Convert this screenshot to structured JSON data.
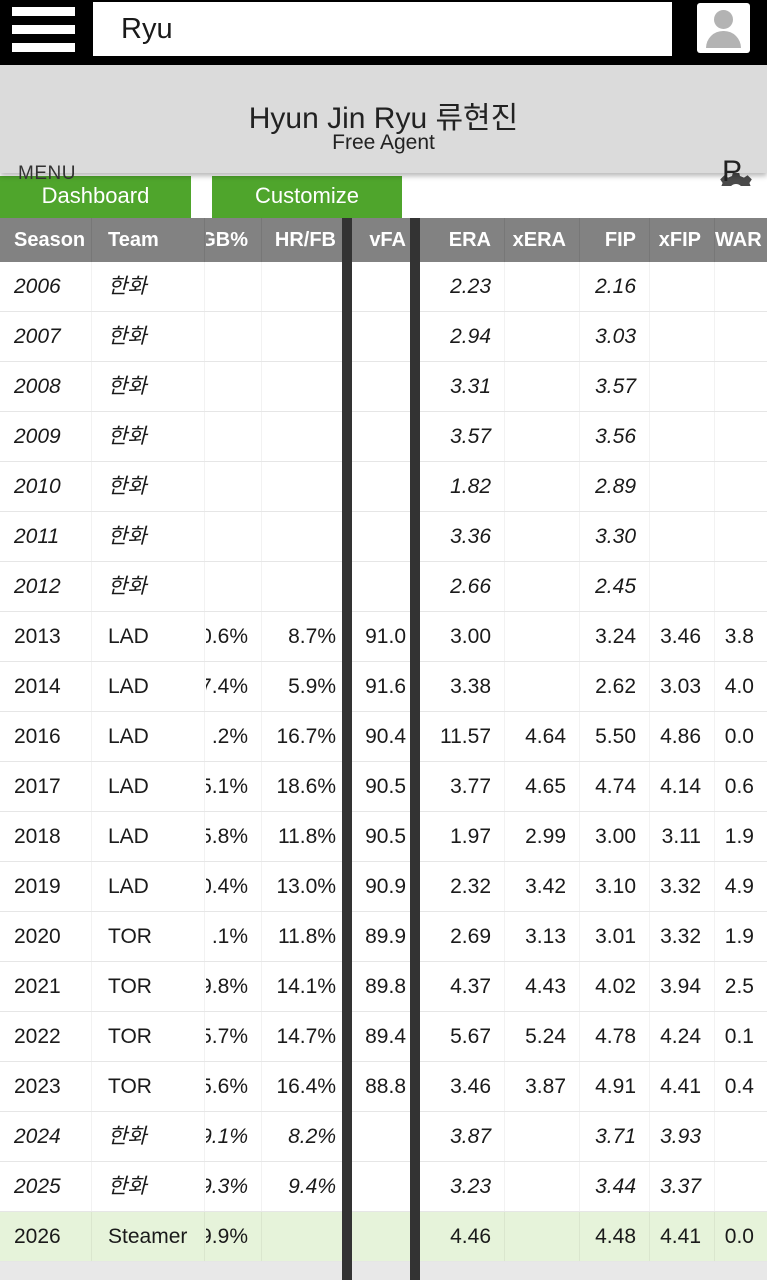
{
  "topbar": {
    "search_value": "Ryu",
    "search_placeholder": ""
  },
  "icons": {
    "menu": "hamburger-icon",
    "account": "person-icon",
    "settings": "gear-icon"
  },
  "playerbar": {
    "menu_label": "MENU",
    "title": "Hyun Jin Ryu 류현진",
    "subtitle": "Free Agent",
    "position_badge": "P"
  },
  "tabs": [
    {
      "label": "Dashboard"
    },
    {
      "label": "Customize"
    }
  ],
  "colors": {
    "tab_green": "#4fa52c",
    "header_gray": "#828282",
    "projection_row_bg": "#e6f3da",
    "divider_dark": "#333333",
    "topbar_black": "#000000",
    "playerbar_gray": "#dbdbdb"
  },
  "table": {
    "columns": [
      {
        "key": "season",
        "label": "Season"
      },
      {
        "key": "team",
        "label": "Team"
      },
      {
        "key": "gb",
        "label": "GB%"
      },
      {
        "key": "hrfb",
        "label": "HR/FB"
      },
      {
        "key": "vfa",
        "label": "vFA"
      },
      {
        "key": "era",
        "label": "ERA"
      },
      {
        "key": "xera",
        "label": "xERA"
      },
      {
        "key": "fip",
        "label": "FIP"
      },
      {
        "key": "xfip",
        "label": "xFIP"
      },
      {
        "key": "war",
        "label": "WAR"
      }
    ],
    "rows": [
      {
        "season": "2006",
        "team": "한화",
        "gb": "",
        "hrfb": "",
        "vfa": "",
        "era": "2.23",
        "xera": "",
        "fip": "2.16",
        "xfip": "",
        "war": "",
        "style": "intl"
      },
      {
        "season": "2007",
        "team": "한화",
        "gb": "",
        "hrfb": "",
        "vfa": "",
        "era": "2.94",
        "xera": "",
        "fip": "3.03",
        "xfip": "",
        "war": "",
        "style": "intl"
      },
      {
        "season": "2008",
        "team": "한화",
        "gb": "",
        "hrfb": "",
        "vfa": "",
        "era": "3.31",
        "xera": "",
        "fip": "3.57",
        "xfip": "",
        "war": "",
        "style": "intl"
      },
      {
        "season": "2009",
        "team": "한화",
        "gb": "",
        "hrfb": "",
        "vfa": "",
        "era": "3.57",
        "xera": "",
        "fip": "3.56",
        "xfip": "",
        "war": "",
        "style": "intl"
      },
      {
        "season": "2010",
        "team": "한화",
        "gb": "",
        "hrfb": "",
        "vfa": "",
        "era": "1.82",
        "xera": "",
        "fip": "2.89",
        "xfip": "",
        "war": "",
        "style": "intl"
      },
      {
        "season": "2011",
        "team": "한화",
        "gb": "",
        "hrfb": "",
        "vfa": "",
        "era": "3.36",
        "xera": "",
        "fip": "3.30",
        "xfip": "",
        "war": "",
        "style": "intl"
      },
      {
        "season": "2012",
        "team": "한화",
        "gb": "",
        "hrfb": "",
        "vfa": "",
        "era": "2.66",
        "xera": "",
        "fip": "2.45",
        "xfip": "",
        "war": "",
        "style": "intl"
      },
      {
        "season": "2013",
        "team": "LAD",
        "gb": "0.6%",
        "hrfb": "8.7%",
        "vfa": "91.0",
        "era": "3.00",
        "xera": "",
        "fip": "3.24",
        "xfip": "3.46",
        "war": "3.8",
        "style": "mlb"
      },
      {
        "season": "2014",
        "team": "LAD",
        "gb": "7.4%",
        "hrfb": "5.9%",
        "vfa": "91.6",
        "era": "3.38",
        "xera": "",
        "fip": "2.62",
        "xfip": "3.03",
        "war": "4.0",
        "style": "mlb"
      },
      {
        "season": "2016",
        "team": "LAD",
        "gb": ".2%",
        "hrfb": "16.7%",
        "vfa": "90.4",
        "era": "11.57",
        "xera": "4.64",
        "fip": "5.50",
        "xfip": "4.86",
        "war": "0.0",
        "style": "mlb"
      },
      {
        "season": "2017",
        "team": "LAD",
        "gb": "5.1%",
        "hrfb": "18.6%",
        "vfa": "90.5",
        "era": "3.77",
        "xera": "4.65",
        "fip": "4.74",
        "xfip": "4.14",
        "war": "0.6",
        "style": "mlb"
      },
      {
        "season": "2018",
        "team": "LAD",
        "gb": "5.8%",
        "hrfb": "11.8%",
        "vfa": "90.5",
        "era": "1.97",
        "xera": "2.99",
        "fip": "3.00",
        "xfip": "3.11",
        "war": "1.9",
        "style": "mlb"
      },
      {
        "season": "2019",
        "team": "LAD",
        "gb": "0.4%",
        "hrfb": "13.0%",
        "vfa": "90.9",
        "era": "2.32",
        "xera": "3.42",
        "fip": "3.10",
        "xfip": "3.32",
        "war": "4.9",
        "style": "mlb"
      },
      {
        "season": "2020",
        "team": "TOR",
        "gb": ".1%",
        "hrfb": "11.8%",
        "vfa": "89.9",
        "era": "2.69",
        "xera": "3.13",
        "fip": "3.01",
        "xfip": "3.32",
        "war": "1.9",
        "style": "mlb"
      },
      {
        "season": "2021",
        "team": "TOR",
        "gb": "9.8%",
        "hrfb": "14.1%",
        "vfa": "89.8",
        "era": "4.37",
        "xera": "4.43",
        "fip": "4.02",
        "xfip": "3.94",
        "war": "2.5",
        "style": "mlb"
      },
      {
        "season": "2022",
        "team": "TOR",
        "gb": "5.7%",
        "hrfb": "14.7%",
        "vfa": "89.4",
        "era": "5.67",
        "xera": "5.24",
        "fip": "4.78",
        "xfip": "4.24",
        "war": "0.1",
        "style": "mlb"
      },
      {
        "season": "2023",
        "team": "TOR",
        "gb": "5.6%",
        "hrfb": "16.4%",
        "vfa": "88.8",
        "era": "3.46",
        "xera": "3.87",
        "fip": "4.91",
        "xfip": "4.41",
        "war": "0.4",
        "style": "mlb"
      },
      {
        "season": "2024",
        "team": "한화",
        "gb": "9.1%",
        "hrfb": "8.2%",
        "vfa": "",
        "era": "3.87",
        "xera": "",
        "fip": "3.71",
        "xfip": "3.93",
        "war": "",
        "style": "intl"
      },
      {
        "season": "2025",
        "team": "한화",
        "gb": "9.3%",
        "hrfb": "9.4%",
        "vfa": "",
        "era": "3.23",
        "xera": "",
        "fip": "3.44",
        "xfip": "3.37",
        "war": "",
        "style": "intl"
      },
      {
        "season": "2026",
        "team": "Steamer",
        "gb": "9.9%",
        "hrfb": "",
        "vfa": "",
        "era": "4.46",
        "xera": "",
        "fip": "4.48",
        "xfip": "4.41",
        "war": "0.0",
        "style": "proj"
      }
    ]
  }
}
